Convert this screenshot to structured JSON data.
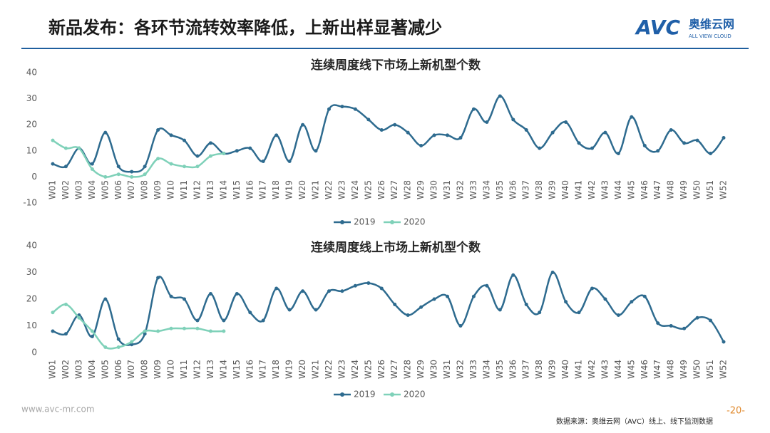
{
  "header": {
    "title": "新品发布：各环节流转效率降低，上新出样显著减少",
    "logo_text": "AVC",
    "logo_cn": "奥维云网",
    "logo_en": "ALL VIEW CLOUD"
  },
  "chart_data": [
    {
      "type": "line",
      "title": "连续周度线下市场上新机型个数",
      "categories": [
        "W01",
        "W02",
        "W03",
        "W04",
        "W05",
        "W06",
        "W07",
        "W08",
        "W09",
        "W10",
        "W11",
        "W12",
        "W13",
        "W14",
        "W15",
        "W16",
        "W17",
        "W18",
        "W19",
        "W20",
        "W21",
        "W22",
        "W23",
        "W24",
        "W25",
        "W26",
        "W27",
        "W28",
        "W29",
        "W30",
        "W31",
        "W32",
        "W33",
        "W34",
        "W35",
        "W36",
        "W37",
        "W38",
        "W39",
        "W40",
        "W41",
        "W42",
        "W43",
        "W44",
        "W45",
        "W46",
        "W47",
        "W48",
        "W49",
        "W50",
        "W51",
        "W52"
      ],
      "series": [
        {
          "name": "2019",
          "color": "#2e6b8f",
          "values": [
            5,
            4,
            11,
            5,
            17,
            4,
            2,
            4,
            18,
            16,
            14,
            8,
            13,
            9,
            10,
            11,
            6,
            16,
            6,
            20,
            10,
            26,
            27,
            26,
            22,
            18,
            20,
            17,
            12,
            16,
            16,
            15,
            26,
            21,
            31,
            22,
            18,
            11,
            17,
            21,
            13,
            11,
            17,
            9,
            23,
            12,
            10,
            18,
            13,
            14,
            9,
            15
          ]
        },
        {
          "name": "2020",
          "color": "#7fd1b9",
          "values": [
            14,
            11,
            11,
            3,
            0,
            1,
            0,
            1,
            7,
            5,
            4,
            4,
            8,
            9,
            null,
            null,
            null,
            null,
            null,
            null,
            null,
            null,
            null,
            null,
            null,
            null,
            null,
            null,
            null,
            null,
            null,
            null,
            null,
            null,
            null,
            null,
            null,
            null,
            null,
            null,
            null,
            null,
            null,
            null,
            null,
            null,
            null,
            null,
            null,
            null,
            null,
            null
          ]
        }
      ],
      "ylim": [
        -10,
        40
      ],
      "yticks": [
        -10,
        0,
        10,
        20,
        30,
        40
      ],
      "grid": false,
      "legend": "bottom"
    },
    {
      "type": "line",
      "title": "连续周度线上市场上新机型个数",
      "categories": [
        "W01",
        "W02",
        "W03",
        "W04",
        "W05",
        "W06",
        "W07",
        "W08",
        "W09",
        "W10",
        "W11",
        "W12",
        "W13",
        "W14",
        "W15",
        "W16",
        "W17",
        "W18",
        "W19",
        "W20",
        "W21",
        "W22",
        "W23",
        "W24",
        "W25",
        "W26",
        "W27",
        "W28",
        "W29",
        "W30",
        "W31",
        "W32",
        "W33",
        "W34",
        "W35",
        "W36",
        "W37",
        "W38",
        "W39",
        "W40",
        "W41",
        "W42",
        "W43",
        "W44",
        "W45",
        "W46",
        "W47",
        "W48",
        "W49",
        "W50",
        "W51",
        "W52"
      ],
      "series": [
        {
          "name": "2019",
          "color": "#2e6b8f",
          "values": [
            8,
            7,
            14,
            6,
            20,
            5,
            3,
            7,
            28,
            21,
            20,
            12,
            22,
            12,
            22,
            15,
            12,
            24,
            16,
            23,
            16,
            23,
            23,
            25,
            26,
            24,
            18,
            14,
            17,
            20,
            21,
            10,
            21,
            25,
            16,
            29,
            18,
            15,
            30,
            19,
            15,
            24,
            20,
            14,
            19,
            21,
            11,
            10,
            9,
            13,
            12,
            4
          ]
        },
        {
          "name": "2020",
          "color": "#7fd1b9",
          "values": [
            15,
            18,
            13,
            8,
            2,
            2,
            4,
            8,
            8,
            9,
            9,
            9,
            8,
            8,
            null,
            null,
            null,
            null,
            null,
            null,
            null,
            null,
            null,
            null,
            null,
            null,
            null,
            null,
            null,
            null,
            null,
            null,
            null,
            null,
            null,
            null,
            null,
            null,
            null,
            null,
            null,
            null,
            null,
            null,
            null,
            null,
            null,
            null,
            null,
            null,
            null,
            null
          ]
        }
      ],
      "ylim": [
        0,
        40
      ],
      "yticks": [
        0,
        10,
        20,
        30,
        40
      ],
      "grid": false,
      "legend": "bottom"
    }
  ],
  "footer": {
    "url": "www.avc-mr.com",
    "page": "-20-",
    "source": "数据来源：奥维云网（AVC）线上、线下监测数据"
  }
}
